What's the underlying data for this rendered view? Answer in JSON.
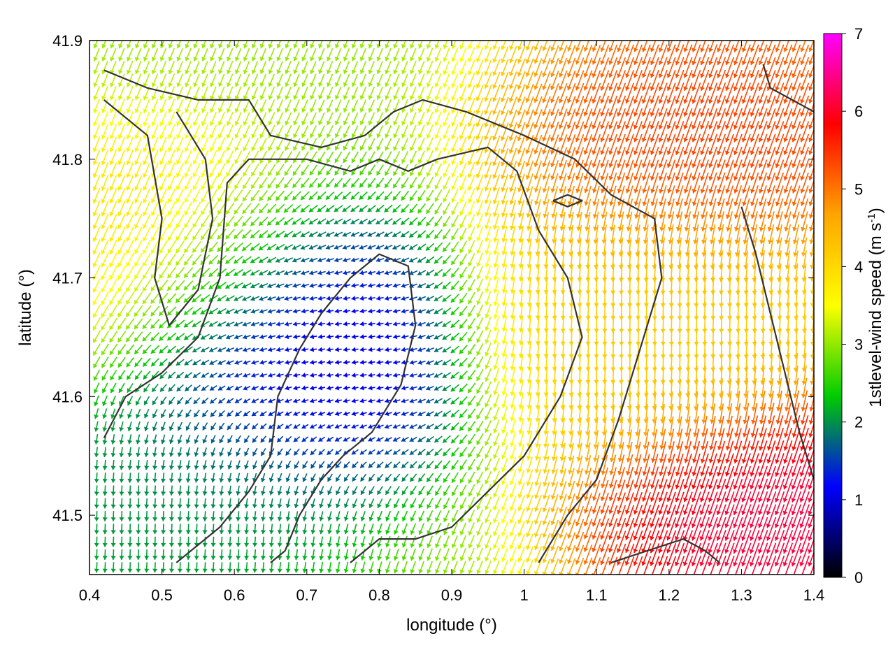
{
  "chart_data": {
    "type": "vector-field",
    "title": "",
    "xlabel": "longitude (°)",
    "ylabel": "latitude (°)",
    "colorbar_label_main": "1stlevel-wind speed (m s",
    "colorbar_label_sup": "-1",
    "colorbar_label_end": ")",
    "xlim": [
      0.4,
      1.4
    ],
    "ylim": [
      41.45,
      41.9
    ],
    "xticks": [
      "0.4",
      "0.5",
      "0.6",
      "0.7",
      "0.8",
      "0.9",
      "1",
      "1.1",
      "1.2",
      "1.3",
      "1.4"
    ],
    "yticks": [
      "41.5",
      "41.6",
      "41.7",
      "41.8",
      "41.9"
    ],
    "cbar_range": [
      0,
      7
    ],
    "cbar_ticks": [
      "0",
      "1",
      "2",
      "3",
      "4",
      "5",
      "6",
      "7"
    ],
    "colormap": [
      "#000000",
      "#0000ff",
      "#00cc00",
      "#ffff00",
      "#ffa500",
      "#ff0000",
      "#ff00ff"
    ],
    "grid": false,
    "wind_regions": [
      {
        "area": "northeast",
        "speed": 5.5,
        "direction_deg_toward": 200
      },
      {
        "area": "east-central band",
        "speed": 4.2,
        "direction_deg_toward": 180
      },
      {
        "area": "west",
        "speed": 4.0,
        "direction_deg_toward": 200
      },
      {
        "area": "southwest",
        "speed": 2.0,
        "direction_deg_toward": 180
      },
      {
        "area": "central valley",
        "speed": 0.8,
        "direction_deg_toward": 270
      },
      {
        "area": "southeast corner",
        "speed": 6.3,
        "direction_deg_toward": 200
      }
    ],
    "contours": [
      [
        [
          0.42,
          41.875
        ],
        [
          0.48,
          41.86
        ],
        [
          0.55,
          41.85
        ],
        [
          0.62,
          41.85
        ],
        [
          0.65,
          41.82
        ],
        [
          0.72,
          41.81
        ],
        [
          0.78,
          41.82
        ],
        [
          0.82,
          41.84
        ],
        [
          0.86,
          41.85
        ],
        [
          0.92,
          41.84
        ],
        [
          1.0,
          41.82
        ],
        [
          1.07,
          41.8
        ],
        [
          1.12,
          41.77
        ],
        [
          1.18,
          41.75
        ],
        [
          1.19,
          41.7
        ],
        [
          1.16,
          41.64
        ],
        [
          1.13,
          41.58
        ],
        [
          1.1,
          41.53
        ],
        [
          1.06,
          41.5
        ],
        [
          1.02,
          41.46
        ]
      ],
      [
        [
          0.42,
          41.565
        ],
        [
          0.45,
          41.6
        ],
        [
          0.5,
          41.62
        ],
        [
          0.55,
          41.65
        ],
        [
          0.58,
          41.7
        ],
        [
          0.59,
          41.78
        ],
        [
          0.62,
          41.8
        ],
        [
          0.7,
          41.8
        ],
        [
          0.76,
          41.79
        ],
        [
          0.8,
          41.8
        ],
        [
          0.84,
          41.79
        ],
        [
          0.88,
          41.8
        ],
        [
          0.95,
          41.81
        ],
        [
          0.99,
          41.79
        ],
        [
          1.02,
          41.74
        ],
        [
          1.06,
          41.7
        ],
        [
          1.08,
          41.65
        ],
        [
          1.05,
          41.6
        ],
        [
          1.0,
          41.55
        ],
        [
          0.95,
          41.52
        ],
        [
          0.9,
          41.49
        ],
        [
          0.85,
          41.48
        ],
        [
          0.8,
          41.48
        ],
        [
          0.76,
          41.46
        ]
      ],
      [
        [
          0.42,
          41.85
        ],
        [
          0.48,
          41.82
        ],
        [
          0.5,
          41.75
        ],
        [
          0.49,
          41.7
        ],
        [
          0.51,
          41.66
        ],
        [
          0.55,
          41.69
        ],
        [
          0.57,
          41.75
        ],
        [
          0.56,
          41.8
        ],
        [
          0.52,
          41.84
        ]
      ],
      [
        [
          0.52,
          41.46
        ],
        [
          0.58,
          41.49
        ],
        [
          0.62,
          41.52
        ],
        [
          0.65,
          41.55
        ],
        [
          0.66,
          41.6
        ],
        [
          0.69,
          41.64
        ],
        [
          0.72,
          41.67
        ],
        [
          0.76,
          41.7
        ],
        [
          0.8,
          41.72
        ],
        [
          0.84,
          41.71
        ],
        [
          0.85,
          41.66
        ],
        [
          0.83,
          41.61
        ],
        [
          0.79,
          41.57
        ],
        [
          0.75,
          41.55
        ],
        [
          0.72,
          41.53
        ],
        [
          0.69,
          41.5
        ],
        [
          0.67,
          41.47
        ],
        [
          0.65,
          41.46
        ]
      ],
      [
        [
          1.12,
          41.46
        ],
        [
          1.17,
          41.47
        ],
        [
          1.22,
          41.48
        ],
        [
          1.25,
          41.47
        ],
        [
          1.27,
          41.46
        ]
      ],
      [
        [
          1.33,
          41.88
        ],
        [
          1.34,
          41.86
        ],
        [
          1.37,
          41.85
        ],
        [
          1.4,
          41.84
        ]
      ],
      [
        [
          1.04,
          41.765
        ],
        [
          1.06,
          41.76
        ],
        [
          1.08,
          41.765
        ],
        [
          1.06,
          41.77
        ],
        [
          1.04,
          41.765
        ]
      ],
      [
        [
          1.3,
          41.76
        ],
        [
          1.32,
          41.72
        ],
        [
          1.34,
          41.67
        ],
        [
          1.36,
          41.62
        ],
        [
          1.38,
          41.57
        ],
        [
          1.4,
          41.53
        ]
      ]
    ]
  }
}
